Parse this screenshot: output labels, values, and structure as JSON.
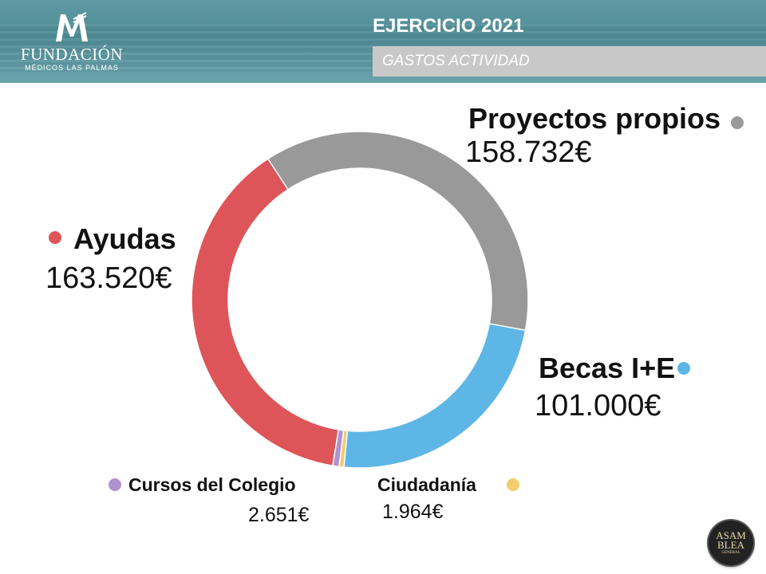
{
  "header": {
    "org_name": "FUNDACIÓN",
    "org_subtitle": "MÉDICOS LAS PALMAS",
    "title": "EJERCICIO 2021",
    "subtitle": "GASTOS ACTIVIDAD"
  },
  "badge": {
    "line1": "ASAM",
    "line2": "BLEA",
    "line3": "GENERAL"
  },
  "colors": {
    "header_teal": "#5a97a0",
    "subtitle_bar": "#c8c8c8"
  },
  "chart_data": {
    "type": "pie",
    "variant": "donut",
    "title": "GASTOS ACTIVIDAD",
    "unit": "€",
    "series": [
      {
        "name": "Proyectos propios",
        "value": 158732,
        "label": "158.732€",
        "color": "#999999"
      },
      {
        "name": "Becas I+E",
        "value": 101000,
        "label": "101.000€",
        "color": "#5db6e6"
      },
      {
        "name": "Ciudadanía",
        "value": 1964,
        "label": "1.964€",
        "color": "#f3cd6e"
      },
      {
        "name": "Cursos del Colegio",
        "value": 2651,
        "label": "2.651€",
        "color": "#b092cf"
      },
      {
        "name": "Ayudas",
        "value": 163520,
        "label": "163.520€",
        "color": "#dd5558"
      }
    ]
  }
}
